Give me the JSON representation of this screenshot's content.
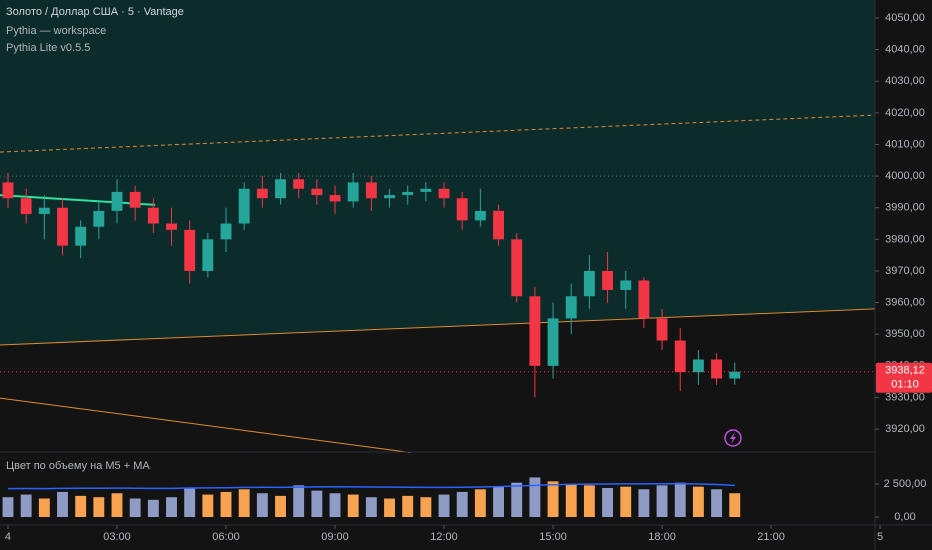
{
  "chart_data": {
    "type": "candlestick",
    "title": "Золото / Доллар США · 5 · Vantage",
    "annotations": [
      "Pythia — workspace",
      "Pythia Lite v0.5.5"
    ],
    "x": [
      0,
      0.5,
      1,
      1.5,
      2,
      2.5,
      3,
      3.5,
      4,
      4.5,
      5,
      5.5,
      6,
      6.5,
      7,
      7.5,
      8,
      8.5,
      9,
      9.5,
      10,
      10.5,
      11,
      11.5,
      12,
      12.5,
      13,
      13.5,
      14,
      14.5,
      15,
      15.5,
      16,
      16.5,
      17,
      17.5,
      18,
      18.5,
      19,
      19.5,
      20
    ],
    "open": [
      3998,
      3993,
      3988,
      3990,
      3978,
      3984,
      3989,
      3995,
      3990,
      3985,
      3983,
      3970,
      3980,
      3985,
      3996,
      3993,
      3999,
      3996,
      3994,
      3992,
      3998,
      3993,
      3994,
      3995,
      3996,
      3993,
      3986,
      3989,
      3980,
      3962,
      3940,
      3955,
      3962,
      3970,
      3964,
      3967,
      3955,
      3948,
      3938,
      3942,
      3936
    ],
    "high": [
      4001,
      3996,
      3994,
      3993,
      3986,
      3992,
      3999,
      3997,
      3993,
      3990,
      3986,
      3982,
      3990,
      3998,
      4000,
      4001,
      4001,
      3999,
      3997,
      4001,
      4000,
      3996,
      3997,
      3998,
      3998,
      3995,
      3996,
      3991,
      3982,
      3965,
      3960,
      3966,
      3975,
      3976,
      3970,
      3968,
      3958,
      3952,
      3945,
      3944,
      3941
    ],
    "low": [
      3990,
      3985,
      3980,
      3975,
      3974,
      3980,
      3985,
      3986,
      3982,
      3978,
      3966,
      3968,
      3976,
      3983,
      3990,
      3991,
      3993,
      3991,
      3988,
      3990,
      3989,
      3990,
      3991,
      3992,
      3990,
      3983,
      3984,
      3978,
      3960,
      3930,
      3936,
      3950,
      3958,
      3960,
      3958,
      3952,
      3945,
      3932,
      3934,
      3934,
      3934
    ],
    "close": [
      3993,
      3988,
      3990,
      3978,
      3984,
      3989,
      3995,
      3990,
      3985,
      3983,
      3970,
      3980,
      3985,
      3996,
      3993,
      3999,
      3996,
      3994,
      3992,
      3998,
      3993,
      3994,
      3995,
      3996,
      3993,
      3986,
      3989,
      3980,
      3962,
      3940,
      3955,
      3962,
      3970,
      3964,
      3967,
      3955,
      3948,
      3938,
      3942,
      3936,
      3938.12
    ],
    "up_color": "#26a69a",
    "down_color": "#f23645",
    "xlim": [
      -0.22,
      23.86
    ],
    "xticks": [
      {
        "value": 0,
        "label": "4"
      },
      {
        "value": 3,
        "label": "03:00"
      },
      {
        "value": 6,
        "label": "06:00"
      },
      {
        "value": 9,
        "label": "09:00"
      },
      {
        "value": 12,
        "label": "12:00"
      },
      {
        "value": 15,
        "label": "15:00"
      },
      {
        "value": 18,
        "label": "18:00"
      },
      {
        "value": 21,
        "label": "21:00"
      },
      {
        "value": 24,
        "label": "5"
      }
    ],
    "ylim": [
      3912.75,
      4055.69
    ],
    "yticks": [
      {
        "value": 3920,
        "label": "3920,00"
      },
      {
        "value": 3930,
        "label": "3930,00"
      },
      {
        "value": 3940,
        "label": "3940,00"
      },
      {
        "value": 3950,
        "label": "3950,00"
      },
      {
        "value": 3960,
        "label": "3960,00"
      },
      {
        "value": 3970,
        "label": "3970,00"
      },
      {
        "value": 3980,
        "label": "3980,00"
      },
      {
        "value": 3990,
        "label": "3990,00"
      },
      {
        "value": 4000,
        "label": "4000,00"
      },
      {
        "value": 4010,
        "label": "4010,00"
      },
      {
        "value": 4020,
        "label": "4020,00"
      },
      {
        "value": 4030,
        "label": "4030,00"
      },
      {
        "value": 4040,
        "label": "4040,00"
      },
      {
        "value": 4050,
        "label": "4050,00"
      }
    ],
    "hline": 4000,
    "last_price_label": "3938,12",
    "countdown": "01:10",
    "lines": [
      {
        "x": [
          -0.22,
          23.86
        ],
        "y": [
          4007.6,
          4019.3
        ],
        "color": "#e08a2e",
        "dashed": true
      },
      {
        "x": [
          -0.22,
          23.86
        ],
        "y": [
          3946.6,
          3958.0
        ],
        "color": "#e08a2e",
        "dashed": false
      },
      {
        "x": [
          -0.22,
          11.07
        ],
        "y": [
          3929.8,
          3912.6
        ],
        "color": "#e08a2e",
        "dashed": false
      },
      {
        "x": [
          -0.22,
          4.05
        ],
        "y": [
          3994.0,
          3990.9
        ],
        "color": "#2ee59d",
        "dashed": false
      }
    ],
    "indicator": {
      "title": "Цвет по объему на M5 + MA",
      "volume": [
        1500,
        1700,
        1400,
        1900,
        1600,
        1500,
        1800,
        1400,
        1300,
        1500,
        2200,
        1700,
        1900,
        2100,
        1800,
        1600,
        2400,
        2000,
        1800,
        1700,
        1500,
        1400,
        1600,
        1500,
        1700,
        1900,
        2100,
        2300,
        2600,
        3000,
        2700,
        2500,
        2400,
        2200,
        2300,
        2100,
        2400,
        2600,
        2300,
        2100,
        1800
      ],
      "ma": [
        2150,
        2160,
        2150,
        2170,
        2180,
        2180,
        2190,
        2180,
        2170,
        2170,
        2200,
        2210,
        2220,
        2240,
        2250,
        2240,
        2260,
        2280,
        2290,
        2280,
        2270,
        2260,
        2250,
        2240,
        2240,
        2250,
        2270,
        2300,
        2350,
        2400,
        2440,
        2470,
        2490,
        2500,
        2510,
        2510,
        2520,
        2520,
        2500,
        2460,
        2400
      ],
      "up_color": "#f7a350",
      "down_color": "#8e9bc4",
      "ma_color": "#2962ff",
      "ylim": [
        0,
        5000
      ],
      "yticks": [
        {
          "value": 0,
          "label": "0,00"
        },
        {
          "value": 2500,
          "label": "2 500,00"
        }
      ]
    }
  }
}
